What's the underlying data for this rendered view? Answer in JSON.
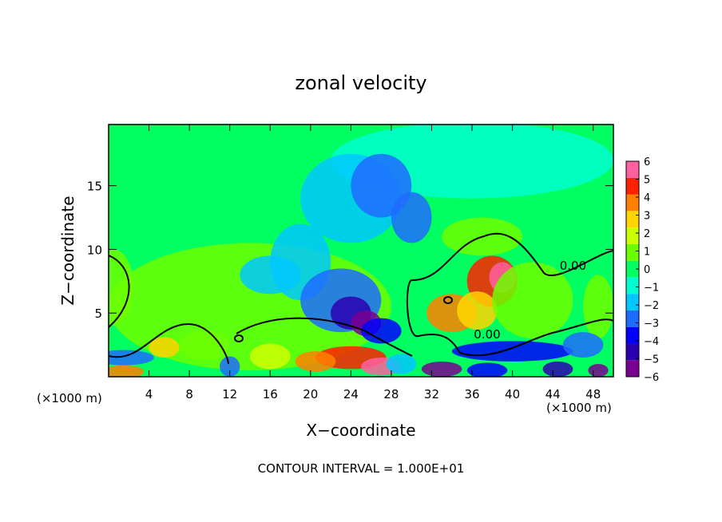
{
  "chart_data": {
    "type": "heatmap",
    "title": "zonal velocity",
    "xlabel": "X−coordinate",
    "ylabel": "Z−coordinate",
    "x_unit_left": "(×1000 m)",
    "x_unit_right": "(×1000 m)",
    "footer": "CONTOUR INTERVAL = 1.000E+01",
    "xlim": [
      0,
      50
    ],
    "ylim": [
      0,
      19.8
    ],
    "x_ticks": [
      4,
      8,
      12,
      16,
      20,
      24,
      28,
      32,
      36,
      40,
      44,
      48
    ],
    "y_ticks": [
      5,
      10,
      15
    ],
    "colorbar": {
      "range": [
        -6,
        6
      ],
      "ticks": [
        6,
        5,
        4,
        3,
        2,
        1,
        0,
        -1,
        -2,
        -3,
        -4,
        -5,
        -6
      ],
      "tick_labels": [
        "6",
        "5",
        "4",
        "3",
        "2",
        "1",
        "0",
        "−1",
        "−2",
        "−3",
        "−4",
        "−5",
        "−6"
      ],
      "colors": [
        "#7a0090",
        "#2a00b0",
        "#0000ff",
        "#1e6cff",
        "#00c8ff",
        "#00ffd0",
        "#00ff60",
        "#6cff00",
        "#ccff00",
        "#ffd400",
        "#ff8000",
        "#ff2000",
        "#ff60a0"
      ]
    },
    "contour_labels": [
      {
        "text": "0.00",
        "x": 46,
        "z": 8.4
      },
      {
        "text": "0.00",
        "x": 37.5,
        "z": 3.0
      }
    ],
    "background_value": 0.2,
    "features": [
      {
        "x": 14,
        "z": 5.5,
        "sx": 14,
        "sz": 5,
        "value": 1.3
      },
      {
        "x": 36,
        "z": 17,
        "sx": 14,
        "sz": 3,
        "value": -1.3
      },
      {
        "x": 24,
        "z": 14,
        "sx": 5,
        "sz": 3.5,
        "value": -2.0
      },
      {
        "x": 27,
        "z": 15,
        "sx": 3,
        "sz": 2.5,
        "value": -2.6
      },
      {
        "x": 19,
        "z": 9,
        "sx": 3,
        "sz": 3,
        "value": -1.8
      },
      {
        "x": 16,
        "z": 8,
        "sx": 3,
        "sz": 1.5,
        "value": -1.7
      },
      {
        "x": 30,
        "z": 12.5,
        "sx": 2,
        "sz": 2,
        "value": -2.5
      },
      {
        "x": 23,
        "z": 6,
        "sx": 4,
        "sz": 2.5,
        "value": -2.6
      },
      {
        "x": 24,
        "z": 5.0,
        "sx": 2,
        "sz": 1.3,
        "value": -4.5
      },
      {
        "x": 25.5,
        "z": 4.2,
        "sx": 1.5,
        "sz": 1,
        "value": -5.2
      },
      {
        "x": 27,
        "z": 3.6,
        "sx": 2,
        "sz": 1,
        "value": -3.5
      },
      {
        "x": 37,
        "z": 11,
        "sx": 4,
        "sz": 1.5,
        "value": 1.0
      },
      {
        "x": 38,
        "z": 7.5,
        "sx": 2.5,
        "sz": 2,
        "value": 4.8
      },
      {
        "x": 39,
        "z": 7.8,
        "sx": 1.3,
        "sz": 1.2,
        "value": 5.5
      },
      {
        "x": 34,
        "z": 5,
        "sx": 2.5,
        "sz": 1.5,
        "value": 3.8
      },
      {
        "x": 36.5,
        "z": 5.2,
        "sx": 2,
        "sz": 1.5,
        "value": 3.0
      },
      {
        "x": 42,
        "z": 6,
        "sx": 4,
        "sz": 3,
        "value": 1.2
      },
      {
        "x": 48.5,
        "z": 5.5,
        "sx": 1.5,
        "sz": 2.5,
        "value": 1.2
      },
      {
        "x": 24,
        "z": 1.5,
        "sx": 3.5,
        "sz": 0.9,
        "value": 4.5
      },
      {
        "x": 20.5,
        "z": 1.2,
        "sx": 2,
        "sz": 0.8,
        "value": 3.8
      },
      {
        "x": 27,
        "z": 0.8,
        "sx": 2,
        "sz": 0.7,
        "value": 5.5
      },
      {
        "x": 16,
        "z": 1.6,
        "sx": 2,
        "sz": 1,
        "value": 1.8
      },
      {
        "x": 5.5,
        "z": 2.3,
        "sx": 1.5,
        "sz": 0.8,
        "value": 3.0
      },
      {
        "x": 9.5,
        "z": 2.5,
        "sx": 2.5,
        "sz": 1.2,
        "value": 1.2
      },
      {
        "x": 1.5,
        "z": 0.4,
        "sx": 2,
        "sz": 0.5,
        "value": 4.0
      },
      {
        "x": 1.5,
        "z": 1.5,
        "sx": 3,
        "sz": 0.6,
        "value": -2.5
      },
      {
        "x": 40,
        "z": 2.0,
        "sx": 6,
        "sz": 0.8,
        "value": -3.3
      },
      {
        "x": 33,
        "z": 0.6,
        "sx": 2,
        "sz": 0.6,
        "value": -5.5
      },
      {
        "x": 37.5,
        "z": 0.5,
        "sx": 2,
        "sz": 0.6,
        "value": -4.0
      },
      {
        "x": 44.5,
        "z": 0.6,
        "sx": 1.5,
        "sz": 0.6,
        "value": -5.0
      },
      {
        "x": 47,
        "z": 2.5,
        "sx": 2,
        "sz": 1,
        "value": -2.8
      },
      {
        "x": 29,
        "z": 1.0,
        "sx": 1.5,
        "sz": 0.8,
        "value": -1.5
      },
      {
        "x": 12,
        "z": 0.8,
        "sx": 1,
        "sz": 0.8,
        "value": -3.0
      },
      {
        "x": 48.5,
        "z": 0.5,
        "sx": 1,
        "sz": 0.5,
        "value": -5.5
      },
      {
        "x": 0.5,
        "z": 7,
        "sx": 2,
        "sz": 3,
        "value": 1.3
      }
    ],
    "grid": false,
    "legend": "colorbar-right"
  }
}
